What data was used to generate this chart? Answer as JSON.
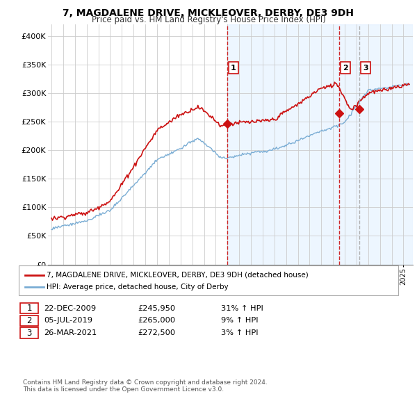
{
  "title_line1": "7, MAGDALENE DRIVE, MICKLEOVER, DERBY, DE3 9DH",
  "title_line2": "Price paid vs. HM Land Registry's House Price Index (HPI)",
  "ylim": [
    0,
    420000
  ],
  "yticks": [
    0,
    50000,
    100000,
    150000,
    200000,
    250000,
    300000,
    350000,
    400000
  ],
  "ytick_labels": [
    "£0",
    "£50K",
    "£100K",
    "£150K",
    "£200K",
    "£250K",
    "£300K",
    "£350K",
    "£400K"
  ],
  "hpi_color": "#7aadd4",
  "price_color": "#cc1111",
  "background_color": "#ffffff",
  "grid_color": "#cccccc",
  "shade_color": "#ddeeff",
  "sale_points": [
    {
      "date_num": 2009.97,
      "price": 245950,
      "label": "1",
      "line_color": "#cc1111",
      "linestyle": "--"
    },
    {
      "date_num": 2019.51,
      "price": 265000,
      "label": "2",
      "line_color": "#cc1111",
      "linestyle": "--"
    },
    {
      "date_num": 2021.23,
      "price": 272500,
      "label": "3",
      "line_color": "#aaaaaa",
      "linestyle": "--"
    }
  ],
  "legend_entries": [
    "7, MAGDALENE DRIVE, MICKLEOVER, DERBY, DE3 9DH (detached house)",
    "HPI: Average price, detached house, City of Derby"
  ],
  "table_rows": [
    [
      "1",
      "22-DEC-2009",
      "£245,950",
      "31% ↑ HPI"
    ],
    [
      "2",
      "05-JUL-2019",
      "£265,000",
      "9% ↑ HPI"
    ],
    [
      "3",
      "26-MAR-2021",
      "£272,500",
      "3% ↑ HPI"
    ]
  ],
  "footnote1": "Contains HM Land Registry data © Crown copyright and database right 2024.",
  "footnote2": "This data is licensed under the Open Government Licence v3.0."
}
